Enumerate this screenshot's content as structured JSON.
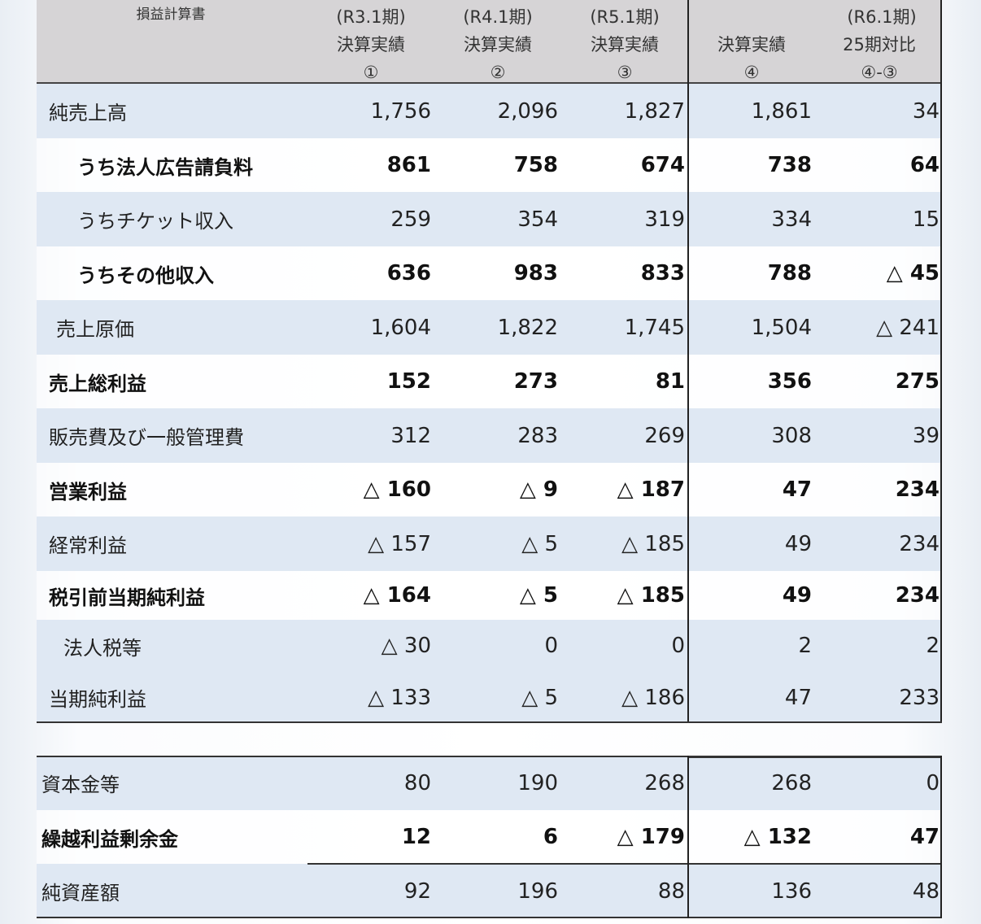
{
  "header": {
    "title": "損益計算書",
    "columns": [
      {
        "period": "(R3.1期)",
        "label": "決算実績",
        "mark": "①"
      },
      {
        "period": "(R4.1期)",
        "label": "決算実績",
        "mark": "②"
      },
      {
        "period": "(R5.1期)",
        "label": "決算実績",
        "mark": "③"
      },
      {
        "period": "(R6.1期)",
        "label": "決算実績",
        "mark": "④"
      },
      {
        "period": "",
        "label": "25期対比",
        "mark": "④-③"
      }
    ]
  },
  "income_statement": [
    {
      "label": "純売上高",
      "level": 0,
      "bold": false,
      "values": [
        "1,756",
        "2,096",
        "1,827",
        "1,861",
        "34"
      ]
    },
    {
      "label": "うち法人広告請負料",
      "level": 2,
      "bold": true,
      "values": [
        "861",
        "758",
        "674",
        "738",
        "64"
      ]
    },
    {
      "label": "うちチケット収入",
      "level": 2,
      "bold": false,
      "values": [
        "259",
        "354",
        "319",
        "334",
        "15"
      ]
    },
    {
      "label": "うちその他収入",
      "level": 2,
      "bold": true,
      "values": [
        "636",
        "983",
        "833",
        "788",
        "△ 45"
      ]
    },
    {
      "label": "売上原価",
      "level": 1,
      "bold": false,
      "values": [
        "1,604",
        "1,822",
        "1,745",
        "1,504",
        "△ 241"
      ]
    },
    {
      "label": "売上総利益",
      "level": 0,
      "bold": true,
      "values": [
        "152",
        "273",
        "81",
        "356",
        "275"
      ]
    },
    {
      "label": "販売費及び一般管理費",
      "level": 0,
      "bold": false,
      "values": [
        "312",
        "283",
        "269",
        "308",
        "39"
      ]
    },
    {
      "label": "営業利益",
      "level": 0,
      "bold": true,
      "values": [
        "△ 160",
        "△ 9",
        "△ 187",
        "47",
        "234"
      ]
    },
    {
      "label": "経常利益",
      "level": 0,
      "bold": false,
      "values": [
        "△ 157",
        "△ 5",
        "△ 185",
        "49",
        "234"
      ]
    },
    {
      "label": "税引前当期純利益",
      "level": 0,
      "bold": true,
      "values": [
        "△ 164",
        "△ 5",
        "△ 185",
        "49",
        "234"
      ]
    },
    {
      "label": "法人税等",
      "level": 1,
      "bold": false,
      "values": [
        "△ 30",
        "0",
        "0",
        "2",
        "2"
      ]
    },
    {
      "label": "当期純利益",
      "level": 0,
      "bold": false,
      "values": [
        "△ 133",
        "△ 5",
        "△ 186",
        "47",
        "233"
      ]
    }
  ],
  "balance": [
    {
      "label": "資本金等",
      "bold": false,
      "values": [
        "80",
        "190",
        "268",
        "268",
        "0"
      ]
    },
    {
      "label": "繰越利益剰余金",
      "bold": true,
      "values": [
        "12",
        "6",
        "△ 179",
        "△ 132",
        "47"
      ]
    },
    {
      "label": "純資産額",
      "bold": false,
      "values": [
        "92",
        "196",
        "88",
        "136",
        "48"
      ]
    }
  ]
}
